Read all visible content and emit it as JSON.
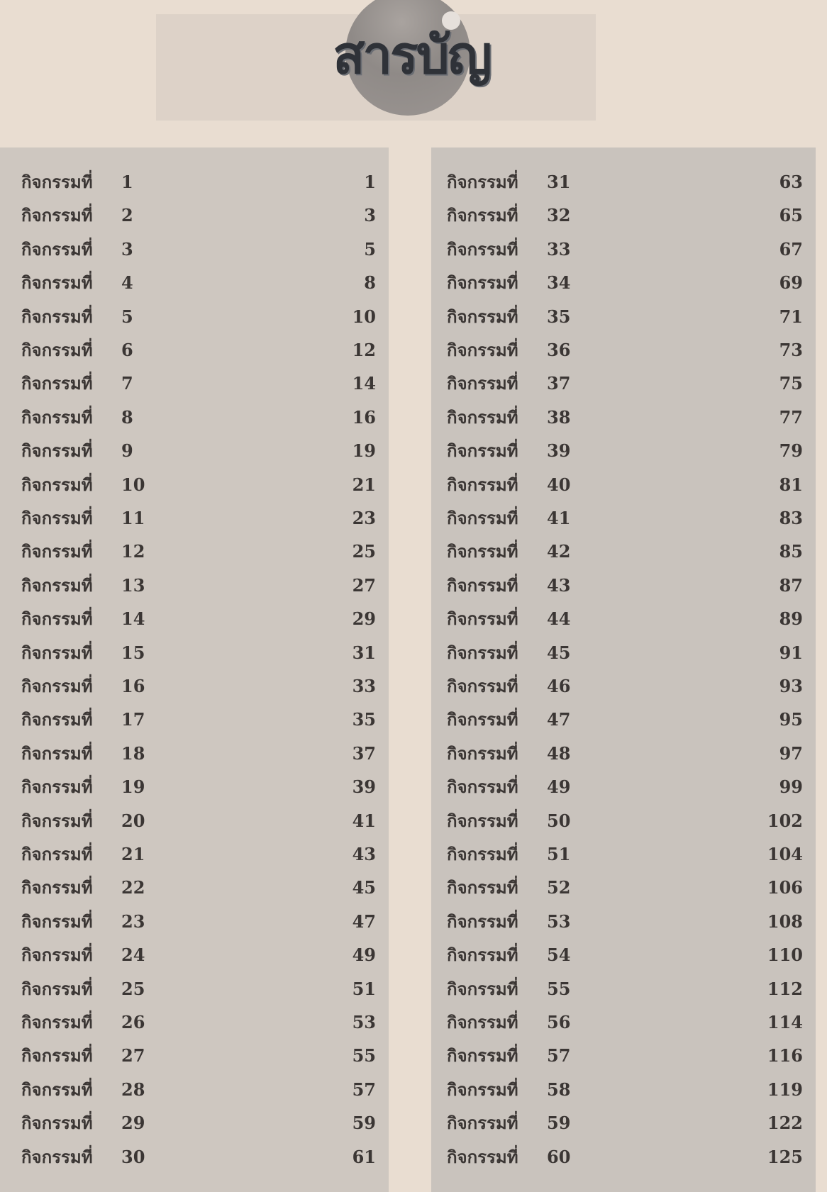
{
  "title": "สารบัญ",
  "colors": {
    "background": "#e9ddd1",
    "panel": "#cec7c0",
    "text": "#3b3634"
  },
  "left_column": [
    {
      "label": "กิจกรรมที่",
      "num": "1",
      "page": "1"
    },
    {
      "label": "กิจกรรมที่",
      "num": "2",
      "page": "3"
    },
    {
      "label": "กิจกรรมที่",
      "num": "3",
      "page": "5"
    },
    {
      "label": "กิจกรรมที่",
      "num": "4",
      "page": "8"
    },
    {
      "label": "กิจกรรมที่",
      "num": "5",
      "page": "10"
    },
    {
      "label": "กิจกรรมที่",
      "num": "6",
      "page": "12"
    },
    {
      "label": "กิจกรรมที่",
      "num": "7",
      "page": "14"
    },
    {
      "label": "กิจกรรมที่",
      "num": "8",
      "page": "16"
    },
    {
      "label": "กิจกรรมที่",
      "num": "9",
      "page": "19"
    },
    {
      "label": "กิจกรรมที่",
      "num": "10",
      "page": "21"
    },
    {
      "label": "กิจกรรมที่",
      "num": "11",
      "page": "23"
    },
    {
      "label": "กิจกรรมที่",
      "num": "12",
      "page": "25"
    },
    {
      "label": "กิจกรรมที่",
      "num": "13",
      "page": "27"
    },
    {
      "label": "กิจกรรมที่",
      "num": "14",
      "page": "29"
    },
    {
      "label": "กิจกรรมที่",
      "num": "15",
      "page": "31"
    },
    {
      "label": "กิจกรรมที่",
      "num": "16",
      "page": "33"
    },
    {
      "label": "กิจกรรมที่",
      "num": "17",
      "page": "35"
    },
    {
      "label": "กิจกรรมที่",
      "num": "18",
      "page": "37"
    },
    {
      "label": "กิจกรรมที่",
      "num": "19",
      "page": "39"
    },
    {
      "label": "กิจกรรมที่",
      "num": "20",
      "page": "41"
    },
    {
      "label": "กิจกรรมที่",
      "num": "21",
      "page": "43"
    },
    {
      "label": "กิจกรรมที่",
      "num": "22",
      "page": "45"
    },
    {
      "label": "กิจกรรมที่",
      "num": "23",
      "page": "47"
    },
    {
      "label": "กิจกรรมที่",
      "num": "24",
      "page": "49"
    },
    {
      "label": "กิจกรรมที่",
      "num": "25",
      "page": "51"
    },
    {
      "label": "กิจกรรมที่",
      "num": "26",
      "page": "53"
    },
    {
      "label": "กิจกรรมที่",
      "num": "27",
      "page": "55"
    },
    {
      "label": "กิจกรรมที่",
      "num": "28",
      "page": "57"
    },
    {
      "label": "กิจกรรมที่",
      "num": "29",
      "page": "59"
    },
    {
      "label": "กิจกรรมที่",
      "num": "30",
      "page": "61"
    }
  ],
  "right_column": [
    {
      "label": "กิจกรรมที่",
      "num": "31",
      "page": "63"
    },
    {
      "label": "กิจกรรมที่",
      "num": "32",
      "page": "65"
    },
    {
      "label": "กิจกรรมที่",
      "num": "33",
      "page": "67"
    },
    {
      "label": "กิจกรรมที่",
      "num": "34",
      "page": "69"
    },
    {
      "label": "กิจกรรมที่",
      "num": "35",
      "page": "71"
    },
    {
      "label": "กิจกรรมที่",
      "num": "36",
      "page": "73"
    },
    {
      "label": "กิจกรรมที่",
      "num": "37",
      "page": "75"
    },
    {
      "label": "กิจกรรมที่",
      "num": "38",
      "page": "77"
    },
    {
      "label": "กิจกรรมที่",
      "num": "39",
      "page": "79"
    },
    {
      "label": "กิจกรรมที่",
      "num": "40",
      "page": "81"
    },
    {
      "label": "กิจกรรมที่",
      "num": "41",
      "page": "83"
    },
    {
      "label": "กิจกรรมที่",
      "num": "42",
      "page": "85"
    },
    {
      "label": "กิจกรรมที่",
      "num": "43",
      "page": "87"
    },
    {
      "label": "กิจกรรมที่",
      "num": "44",
      "page": "89"
    },
    {
      "label": "กิจกรรมที่",
      "num": "45",
      "page": "91"
    },
    {
      "label": "กิจกรรมที่",
      "num": "46",
      "page": "93"
    },
    {
      "label": "กิจกรรมที่",
      "num": "47",
      "page": "95"
    },
    {
      "label": "กิจกรรมที่",
      "num": "48",
      "page": "97"
    },
    {
      "label": "กิจกรรมที่",
      "num": "49",
      "page": "99"
    },
    {
      "label": "กิจกรรมที่",
      "num": "50",
      "page": "102"
    },
    {
      "label": "กิจกรรมที่",
      "num": "51",
      "page": "104"
    },
    {
      "label": "กิจกรรมที่",
      "num": "52",
      "page": "106"
    },
    {
      "label": "กิจกรรมที่",
      "num": "53",
      "page": "108"
    },
    {
      "label": "กิจกรรมที่",
      "num": "54",
      "page": "110"
    },
    {
      "label": "กิจกรรมที่",
      "num": "55",
      "page": "112"
    },
    {
      "label": "กิจกรรมที่",
      "num": "56",
      "page": "114"
    },
    {
      "label": "กิจกรรมที่",
      "num": "57",
      "page": "116"
    },
    {
      "label": "กิจกรรมที่",
      "num": "58",
      "page": "119"
    },
    {
      "label": "กิจกรรมที่",
      "num": "59",
      "page": "122"
    },
    {
      "label": "กิจกรรมที่",
      "num": "60",
      "page": "125"
    }
  ]
}
